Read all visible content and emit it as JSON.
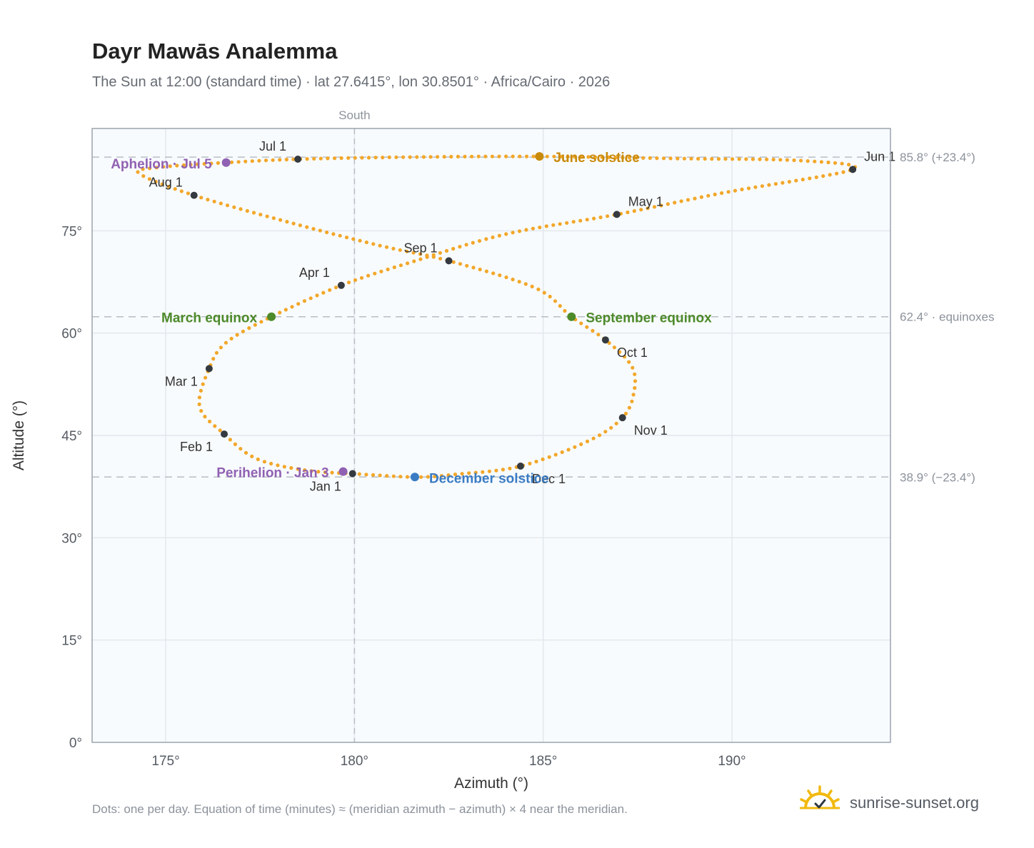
{
  "header": {
    "title": "Dayr Mawās Analemma",
    "subtitle": "The Sun at 12:00 (standard time) · lat 27.6415°, lon 30.8501° · Africa/Cairo · 2026"
  },
  "footer": {
    "note": "Dots: one per day. Equation of time (minutes) ≈ (meridian azimuth − azimuth) × 4 near the meridian.",
    "brand": "sunrise-sunset.org",
    "brand_icon": "sun-check-icon"
  },
  "colors": {
    "path": "#f2a72a",
    "month_marker": "#343a40",
    "june_solstice": "#c98a0a",
    "equinox": "#4d8a2a",
    "december_solstice": "#3a7cc4",
    "perihelion_aphelion": "#9061b3",
    "plot_background": "#f8fbfd",
    "grid": "#e3e8ee",
    "reference_line": "#b8bec6"
  },
  "chart_data": {
    "type": "scatter",
    "xlabel": "Azimuth (°)",
    "ylabel": "Altitude (°)",
    "xlim": [
      173.05,
      194.2
    ],
    "ylim": [
      0,
      90
    ],
    "xticks": [
      175,
      180,
      185,
      190
    ],
    "xtick_labels": [
      "175°",
      "180°",
      "185°",
      "190°"
    ],
    "yticks": [
      0,
      15,
      30,
      45,
      60,
      75
    ],
    "ytick_labels": [
      "0°",
      "15°",
      "30°",
      "45°",
      "60°",
      "75°"
    ],
    "grid": true,
    "meridian": {
      "azimuth": 180,
      "label": "South"
    },
    "reference_lines": [
      {
        "altitude": 85.8,
        "label": "85.8° (+23.4°)"
      },
      {
        "altitude": 62.4,
        "label": "62.4° · equinoxes"
      },
      {
        "altitude": 38.9,
        "label": "38.9° (−23.4°)"
      }
    ],
    "path_anchors": [
      {
        "x": 179.95,
        "y": 39.4
      },
      {
        "x": 178.7,
        "y": 39.9
      },
      {
        "x": 177.4,
        "y": 41.6
      },
      {
        "x": 176.55,
        "y": 45.2
      },
      {
        "x": 175.9,
        "y": 49.2
      },
      {
        "x": 176.15,
        "y": 54.8
      },
      {
        "x": 176.6,
        "y": 58.6
      },
      {
        "x": 177.8,
        "y": 62.4
      },
      {
        "x": 179.65,
        "y": 67.0
      },
      {
        "x": 181.5,
        "y": 70.4
      },
      {
        "x": 184.0,
        "y": 74.5
      },
      {
        "x": 186.95,
        "y": 77.4
      },
      {
        "x": 189.8,
        "y": 80.6
      },
      {
        "x": 193.2,
        "y": 84.0
      },
      {
        "x": 191.8,
        "y": 85.3
      },
      {
        "x": 188.5,
        "y": 85.6
      },
      {
        "x": 184.9,
        "y": 85.9
      },
      {
        "x": 181.4,
        "y": 85.8
      },
      {
        "x": 178.5,
        "y": 85.5
      },
      {
        "x": 176.6,
        "y": 85.0
      },
      {
        "x": 174.8,
        "y": 84.3
      },
      {
        "x": 174.3,
        "y": 83.4
      },
      {
        "x": 175.75,
        "y": 80.2
      },
      {
        "x": 178.5,
        "y": 75.9
      },
      {
        "x": 180.7,
        "y": 72.8
      },
      {
        "x": 182.5,
        "y": 70.6
      },
      {
        "x": 184.8,
        "y": 66.6
      },
      {
        "x": 185.75,
        "y": 62.4
      },
      {
        "x": 186.65,
        "y": 59.0
      },
      {
        "x": 187.35,
        "y": 55.1
      },
      {
        "x": 187.4,
        "y": 51.2
      },
      {
        "x": 187.1,
        "y": 47.6
      },
      {
        "x": 186.2,
        "y": 44.2
      },
      {
        "x": 184.4,
        "y": 40.5
      },
      {
        "x": 182.7,
        "y": 39.3
      },
      {
        "x": 181.6,
        "y": 38.9
      },
      {
        "x": 179.95,
        "y": 39.4
      }
    ],
    "month_markers": [
      {
        "label": "Jan 1",
        "x": 179.95,
        "y": 39.4,
        "anchor": "end",
        "dx": -16,
        "dy": 24
      },
      {
        "label": "Feb 1",
        "x": 176.55,
        "y": 45.2,
        "anchor": "end",
        "dx": -16,
        "dy": 24
      },
      {
        "label": "Mar 1",
        "x": 176.15,
        "y": 54.8,
        "anchor": "end",
        "dx": -16,
        "dy": 24
      },
      {
        "label": "Apr 1",
        "x": 179.65,
        "y": 67.0,
        "anchor": "end",
        "dx": -16,
        "dy": -12
      },
      {
        "label": "May 1",
        "x": 186.95,
        "y": 77.4,
        "anchor": "start",
        "dx": 16,
        "dy": -12
      },
      {
        "label": "Jun 1",
        "x": 193.2,
        "y": 84.0,
        "anchor": "start",
        "dx": 16,
        "dy": -12
      },
      {
        "label": "Jul 1",
        "x": 178.5,
        "y": 85.5,
        "anchor": "end",
        "dx": -16,
        "dy": -12
      },
      {
        "label": "Aug 1",
        "x": 175.75,
        "y": 80.2,
        "anchor": "end",
        "dx": -16,
        "dy": -12
      },
      {
        "label": "Sep 1",
        "x": 182.5,
        "y": 70.6,
        "anchor": "end",
        "dx": -16,
        "dy": -12
      },
      {
        "label": "Oct 1",
        "x": 186.65,
        "y": 59.0,
        "anchor": "start",
        "dx": 16,
        "dy": 24
      },
      {
        "label": "Nov 1",
        "x": 187.1,
        "y": 47.6,
        "anchor": "start",
        "dx": 16,
        "dy": 24
      },
      {
        "label": "Dec 1",
        "x": 184.4,
        "y": 40.5,
        "anchor": "start",
        "dx": 16,
        "dy": 24
      }
    ],
    "events": [
      {
        "label": "June solstice",
        "x": 184.9,
        "y": 85.9,
        "color": "#c98a0a",
        "anchor": "start",
        "dx": 20,
        "dy": 8
      },
      {
        "label": "March equinox",
        "x": 177.8,
        "y": 62.4,
        "color": "#4d8a2a",
        "anchor": "end",
        "dx": -20,
        "dy": 8
      },
      {
        "label": "September equinox",
        "x": 185.75,
        "y": 62.4,
        "color": "#4d8a2a",
        "anchor": "start",
        "dx": 20,
        "dy": 8
      },
      {
        "label": "December solstice",
        "x": 181.6,
        "y": 38.9,
        "color": "#3a7cc4",
        "anchor": "start",
        "dx": 20,
        "dy": 8
      },
      {
        "label": "Perihelion · Jan 3",
        "x": 179.7,
        "y": 39.7,
        "color": "#9061b3",
        "anchor": "end",
        "dx": -20,
        "dy": 8
      },
      {
        "label": "Aphelion · Jul 5",
        "x": 176.6,
        "y": 85.0,
        "color": "#9061b3",
        "anchor": "end",
        "dx": -20,
        "dy": 8
      }
    ]
  }
}
